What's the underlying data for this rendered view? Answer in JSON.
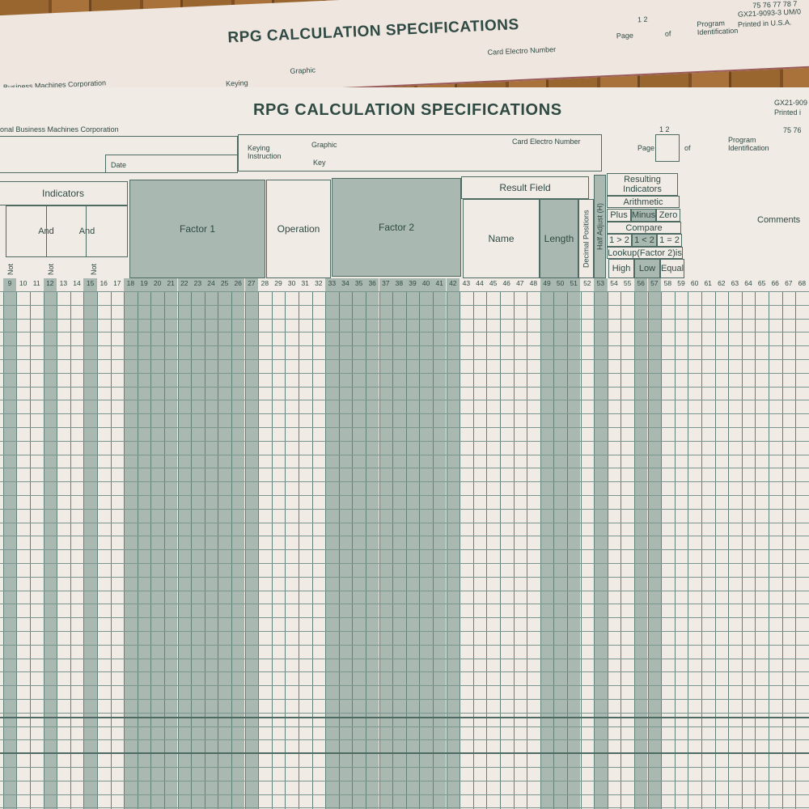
{
  "back_sheet": {
    "title": "RPG CALCULATION SPECIFICATIONS",
    "company": "Business Machines Corporation",
    "keying": "Keying",
    "graphic": "Graphic",
    "card_electro": "Card Electro Number",
    "page": "Page",
    "page_digits": "1 2",
    "of": "of",
    "program_id": "Program Identification",
    "form_number": "GX21-9093-3 UM/0",
    "printed": "Printed in U.S.A.",
    "id_columns": "75 76 77 78 7"
  },
  "front_sheet": {
    "title": "RPG CALCULATION SPECIFICATIONS",
    "company": "onal Business Machines Corporation",
    "date": "Date",
    "keying": "Keying Instruction",
    "graphic": "Graphic",
    "key": "Key",
    "card_electro": "Card Electro Number",
    "page": "Page",
    "page_digits": "1 2",
    "of": "of",
    "program_id": "Program Identification",
    "form_number": "GX21-909",
    "printed": "Printed i",
    "id_columns": "75 76"
  },
  "headers": {
    "indicators": "Indicators",
    "and1": "And",
    "and2": "And",
    "not": "Not",
    "factor1": "Factor 1",
    "operation": "Operation",
    "factor2": "Factor 2",
    "result_field": "Result Field",
    "name": "Name",
    "length": "Length",
    "decimal_positions": "Decimal Positions",
    "half_adjust": "Half Adjust (H)",
    "resulting_indicators": "Resulting Indicators",
    "arithmetic": "Arithmetic",
    "plus": "Plus",
    "minus": "Minus",
    "zero": "Zero",
    "compare": "Compare",
    "gt": "1 > 2",
    "lt": "1 < 2",
    "eq": "1 = 2",
    "lookup": "Lookup(Factor 2)is",
    "high": "High",
    "low": "Low",
    "equal": "Equal",
    "comments": "Comments"
  },
  "column_numbers": [
    9,
    10,
    11,
    12,
    13,
    14,
    15,
    16,
    17,
    18,
    19,
    20,
    21,
    22,
    23,
    24,
    25,
    26,
    27,
    28,
    29,
    30,
    31,
    32,
    33,
    34,
    35,
    36,
    37,
    38,
    39,
    40,
    41,
    42,
    43,
    44,
    45,
    46,
    47,
    48,
    49,
    50,
    51,
    52,
    53,
    54,
    55,
    56,
    57,
    58,
    59,
    60,
    61,
    62,
    63,
    64,
    65,
    66,
    67,
    68
  ],
  "shaded_columns": [
    9,
    12,
    15,
    18,
    19,
    20,
    21,
    22,
    23,
    24,
    25,
    26,
    27,
    33,
    34,
    35,
    36,
    37,
    38,
    39,
    40,
    41,
    42,
    49,
    50,
    51,
    53,
    56,
    57
  ],
  "colors": {
    "ink": "#2f4a44",
    "shade": "#a9b8b1",
    "paper": "#f1ebe6"
  }
}
